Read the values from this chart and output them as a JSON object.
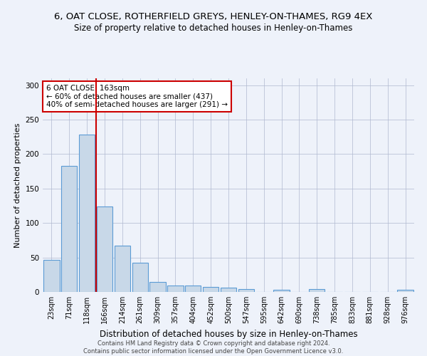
{
  "title": "6, OAT CLOSE, ROTHERFIELD GREYS, HENLEY-ON-THAMES, RG9 4EX",
  "subtitle": "Size of property relative to detached houses in Henley-on-Thames",
  "xlabel": "Distribution of detached houses by size in Henley-on-Thames",
  "ylabel": "Number of detached properties",
  "footer_line1": "Contains HM Land Registry data © Crown copyright and database right 2024.",
  "footer_line2": "Contains public sector information licensed under the Open Government Licence v3.0.",
  "categories": [
    "23sqm",
    "71sqm",
    "118sqm",
    "166sqm",
    "214sqm",
    "261sqm",
    "309sqm",
    "357sqm",
    "404sqm",
    "452sqm",
    "500sqm",
    "547sqm",
    "595sqm",
    "642sqm",
    "690sqm",
    "738sqm",
    "785sqm",
    "833sqm",
    "881sqm",
    "928sqm",
    "976sqm"
  ],
  "values": [
    47,
    183,
    228,
    124,
    67,
    42,
    14,
    9,
    9,
    7,
    6,
    4,
    0,
    3,
    0,
    4,
    0,
    0,
    0,
    0,
    3
  ],
  "bar_color": "#c8d8e8",
  "bar_edge_color": "#5b9bd5",
  "vline_color": "#cc0000",
  "annotation_text": "6 OAT CLOSE: 163sqm\n← 60% of detached houses are smaller (437)\n40% of semi-detached houses are larger (291) →",
  "annotation_box_color": "#ffffff",
  "annotation_box_edge": "#cc0000",
  "ylim": [
    0,
    310
  ],
  "background_color": "#eef2fa",
  "grid_color": "#b0b8d0",
  "title_fontsize": 9.5,
  "subtitle_fontsize": 8.5,
  "tick_fontsize": 7,
  "ylabel_fontsize": 8,
  "xlabel_fontsize": 8.5
}
